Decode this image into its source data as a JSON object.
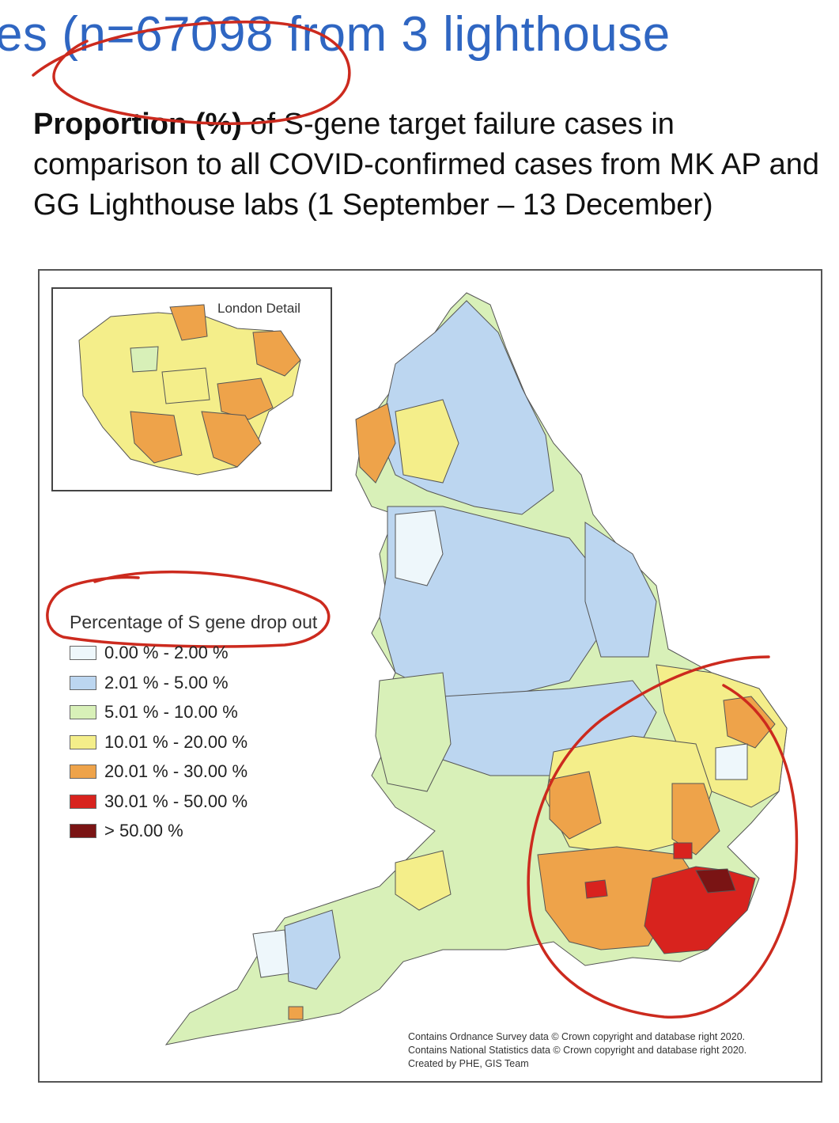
{
  "header": {
    "partial_title": "es (n=67098 from 3 lighthouse"
  },
  "caption": {
    "bold": "Proportion (%)",
    "rest": " of S-gene target failure cases in comparison to all COVID-confirmed cases from MK AP and GG Lighthouse labs (1 September – 13 December)"
  },
  "map": {
    "inset_title": "London Detail",
    "legend": {
      "title": "Percentage of S gene drop out",
      "items": [
        {
          "label": "0.00 % - 2.00 %",
          "color": "#eef7fb"
        },
        {
          "label": "2.01 % - 5.00 %",
          "color": "#bcd6f0"
        },
        {
          "label": "5.01 % - 10.00 %",
          "color": "#d8f0b8"
        },
        {
          "label": "10.01 % - 20.00 %",
          "color": "#f4ee8a"
        },
        {
          "label": "20.01 % - 30.00 %",
          "color": "#eea34a"
        },
        {
          "label": "30.01 % - 50.00 %",
          "color": "#d8231e"
        },
        {
          "label": "> 50.00 %",
          "color": "#7a1414"
        }
      ]
    },
    "credits": [
      "Contains Ordnance Survey data © Crown copyright and database right 2020.",
      "Contains National Statistics data © Crown copyright and database right 2020.",
      "Created by PHE, GIS Team"
    ]
  },
  "annotation_color": "#cc2a1e"
}
